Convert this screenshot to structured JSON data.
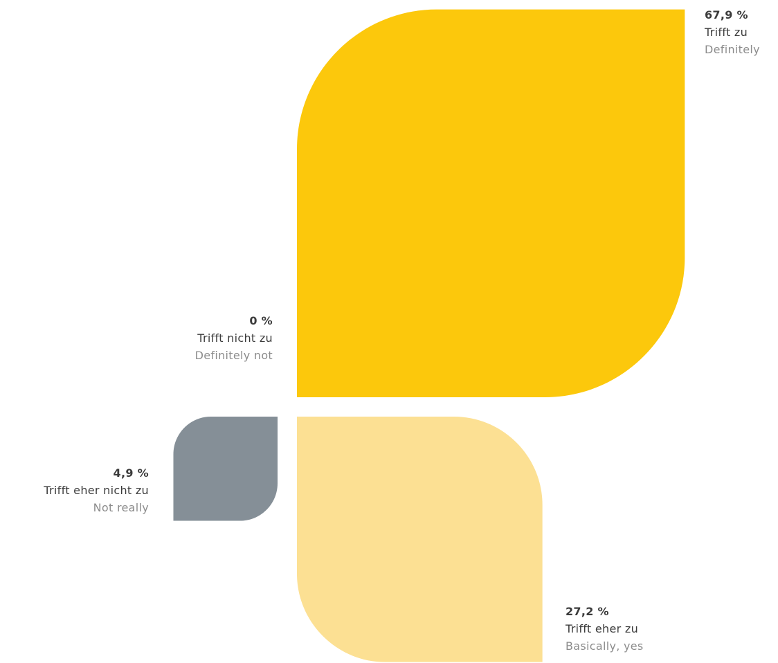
{
  "colors": {
    "trifft_zu": "#fcc80c",
    "trifft_eher_zu": "#fce093",
    "trifft_eher_nicht_zu": "#858f97",
    "trifft_nicht_zu": "#d0d0d0"
  },
  "chart_data": {
    "type": "pie",
    "title": "",
    "unit": "%",
    "categories": [
      {
        "key": "trifft_zu",
        "value": 67.9,
        "value_label": "67,9 %",
        "label_de": "Trifft zu",
        "label_en": "Definitely",
        "color": "#fcc80c"
      },
      {
        "key": "trifft_eher_zu",
        "value": 27.2,
        "value_label": "27,2 %",
        "label_de": "Trifft eher zu",
        "label_en": "Basically, yes",
        "color": "#fce093"
      },
      {
        "key": "trifft_eher_nicht_zu",
        "value": 4.9,
        "value_label": "4,9 %",
        "label_de": "Trifft eher nicht zu",
        "label_en": "Not really",
        "color": "#858f97"
      },
      {
        "key": "trifft_nicht_zu",
        "value": 0,
        "value_label": "0 %",
        "label_de": "Trifft nicht zu",
        "label_en": "Definitely not",
        "color": "#d0d0d0"
      }
    ]
  }
}
